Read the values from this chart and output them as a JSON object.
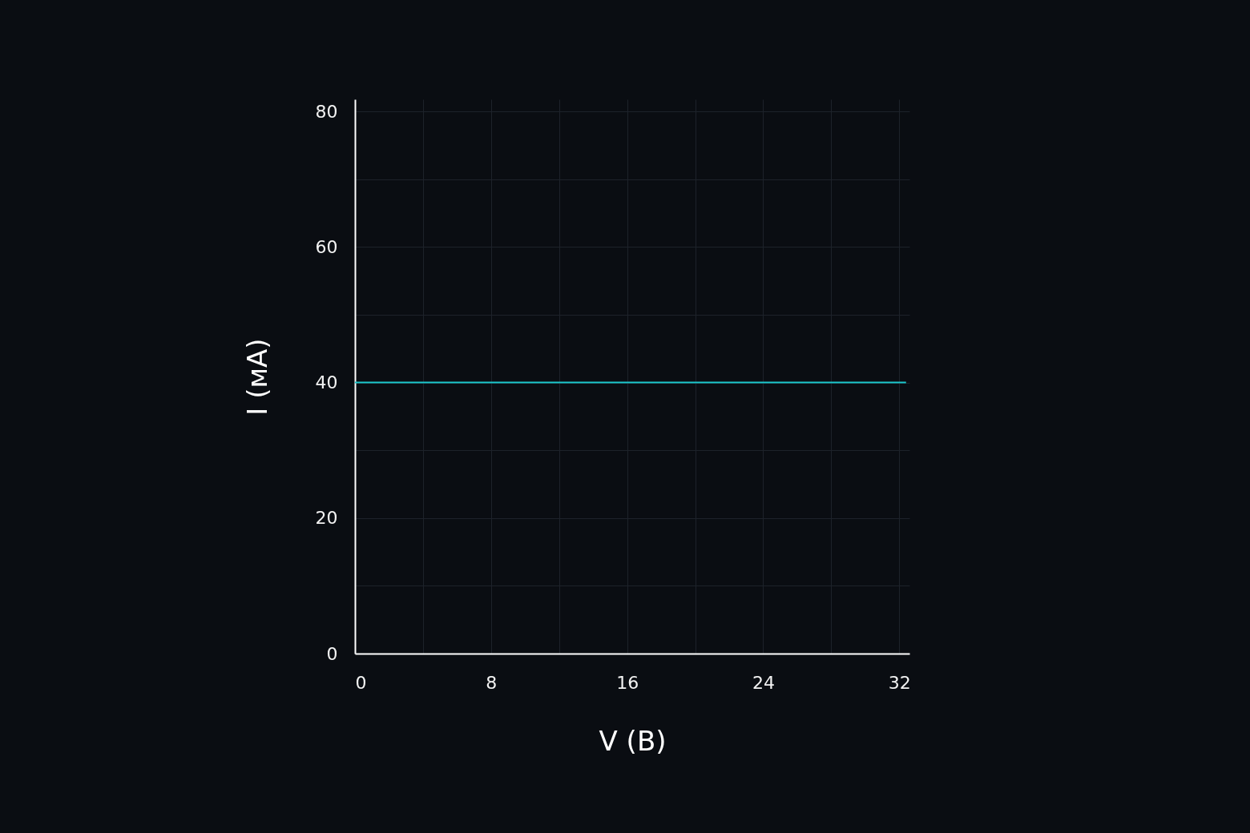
{
  "chart_data": {
    "type": "line",
    "xlabel": "V (В)",
    "ylabel": "I (мА)",
    "x": [
      0,
      32.4
    ],
    "series": [
      {
        "color": "#1cc8cc",
        "values": [
          40,
          40
        ]
      }
    ],
    "xlim": [
      0,
      32.6
    ],
    "ylim": [
      0,
      81.8
    ],
    "xticks": [
      0,
      {
        "value": 4,
        "label": null
      },
      8,
      {
        "value": 12,
        "label": null
      },
      16,
      {
        "value": 20,
        "label": null
      },
      24,
      {
        "value": 28,
        "label": null
      },
      32
    ],
    "yticks": [
      0,
      {
        "value": 10,
        "label": null
      },
      20,
      {
        "value": 30,
        "label": null
      },
      40,
      {
        "value": 50,
        "label": null
      },
      60,
      {
        "value": 70,
        "label": null
      },
      80
    ],
    "grid": true,
    "marker": "none",
    "line_style": "solid"
  }
}
